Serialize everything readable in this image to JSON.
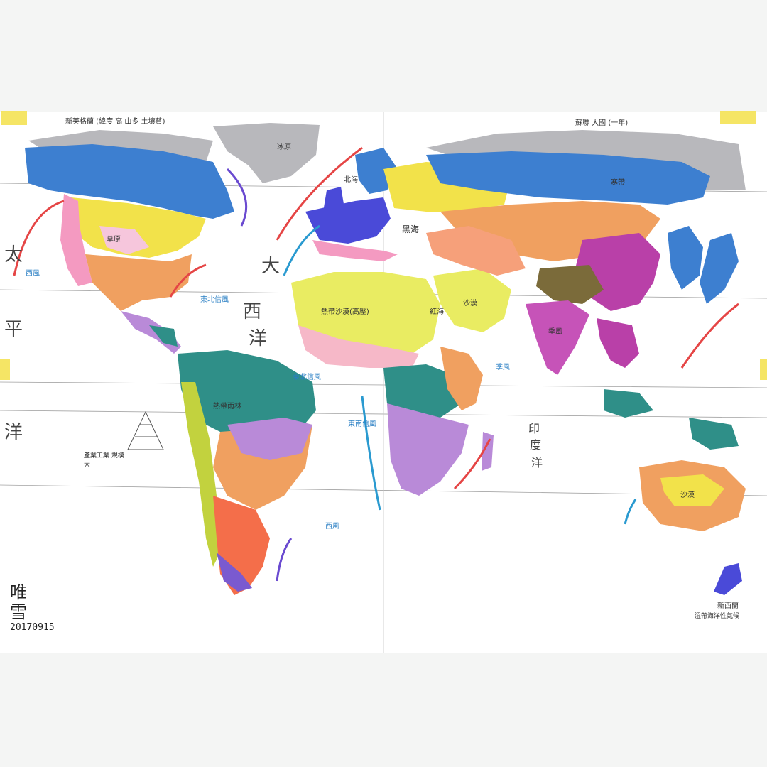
{
  "map": {
    "oceans": {
      "pacific_left_1": "太",
      "pacific_left_2": "平",
      "pacific_left_3": "洋",
      "atlantic_1": "大",
      "atlantic_2": "西",
      "atlantic_3": "洋",
      "indian_1": "印",
      "indian_2": "度",
      "indian_3": "洋"
    },
    "seas": {
      "mediterranean": "黑海",
      "north_sea": "北海",
      "red_sea": "紅海"
    },
    "winds": {
      "ne_trade_atlantic": "東北信風",
      "ne_trade_africa": "東北信風",
      "se_trade": "東南信風",
      "westerlies_left": "西風",
      "westerlies_sa": "西風",
      "monsoon": "季風"
    },
    "regions": {
      "sahara": "熱帶沙漠(高壓)",
      "australia_desert": "沙漠",
      "na_grassland": "草原",
      "greenland": "冰原",
      "siberia": "寒帶",
      "amazon": "熱帶雨林",
      "arabia": "沙漠",
      "india": "季風"
    },
    "notes": {
      "top_left": "新英格蘭 (緯度 高 山多 土壤貧)",
      "top_right": "蘇聯 大國 (一年)",
      "bottom_right_1": "新西蘭",
      "bottom_right_2": "溫帶海洋性氣候",
      "legend_pyramid": "產業工業 規模大"
    },
    "signature": {
      "name_1": "唯",
      "name_2": "雪",
      "date": "20170915"
    }
  },
  "colors": {
    "tundra": "#8fb0dd",
    "ice": "#b8b8bc",
    "taiga": "#3d7fd0",
    "temperate": "#f2e24a",
    "desert": "#e9ec62",
    "savanna": "#f0a060",
    "rainforest": "#2f8f88",
    "monsoon": "#c653b8",
    "mediterranean": "#f49ac1",
    "highland": "#7b6b3a",
    "ocean_current_warm": "#e54545",
    "ocean_current_cold": "#2a9ad0"
  }
}
